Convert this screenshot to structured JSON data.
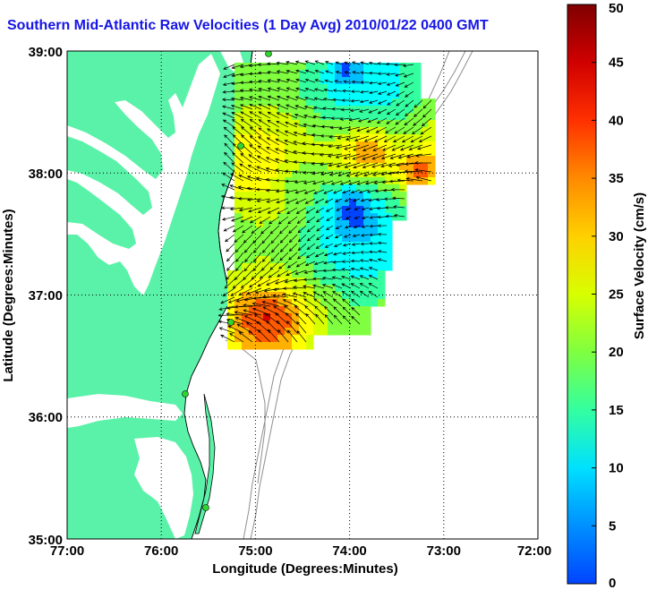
{
  "title": "Southern Mid-Atlantic Raw Velocities (1 Day Avg) 2010/01/22 0400 GMT",
  "axes": {
    "xlabel": "Longitude (Degrees:Minutes)",
    "ylabel": "Latitude (Degrees:Minutes)",
    "x_ticks": [
      "77:00",
      "76:00",
      "75:00",
      "74:00",
      "73:00",
      "72:00"
    ],
    "y_ticks": [
      "39:00",
      "38:00",
      "37:00",
      "36:00",
      "35:00"
    ],
    "xlim": [
      -77,
      -72
    ],
    "ylim": [
      35,
      39
    ],
    "grid": "dotted"
  },
  "colorbar": {
    "label": "Surface Velocity (cm/s)",
    "ticks": [
      "0",
      "5",
      "10",
      "15",
      "20",
      "25",
      "30",
      "35",
      "40",
      "45",
      "50"
    ],
    "range": [
      0,
      50
    ],
    "colors": [
      "#0044ff",
      "#00bfff",
      "#00ffff",
      "#33ffa0",
      "#7fff40",
      "#d8ff00",
      "#ffff00",
      "#ffb000",
      "#ff5a00",
      "#e00000",
      "#800000"
    ]
  },
  "colors": {
    "land": "#5af2a8",
    "land_outline": "#000000",
    "bathymetry": "#8f8f8f",
    "stations": "#2fd62f",
    "title": "#1515e6"
  }
}
